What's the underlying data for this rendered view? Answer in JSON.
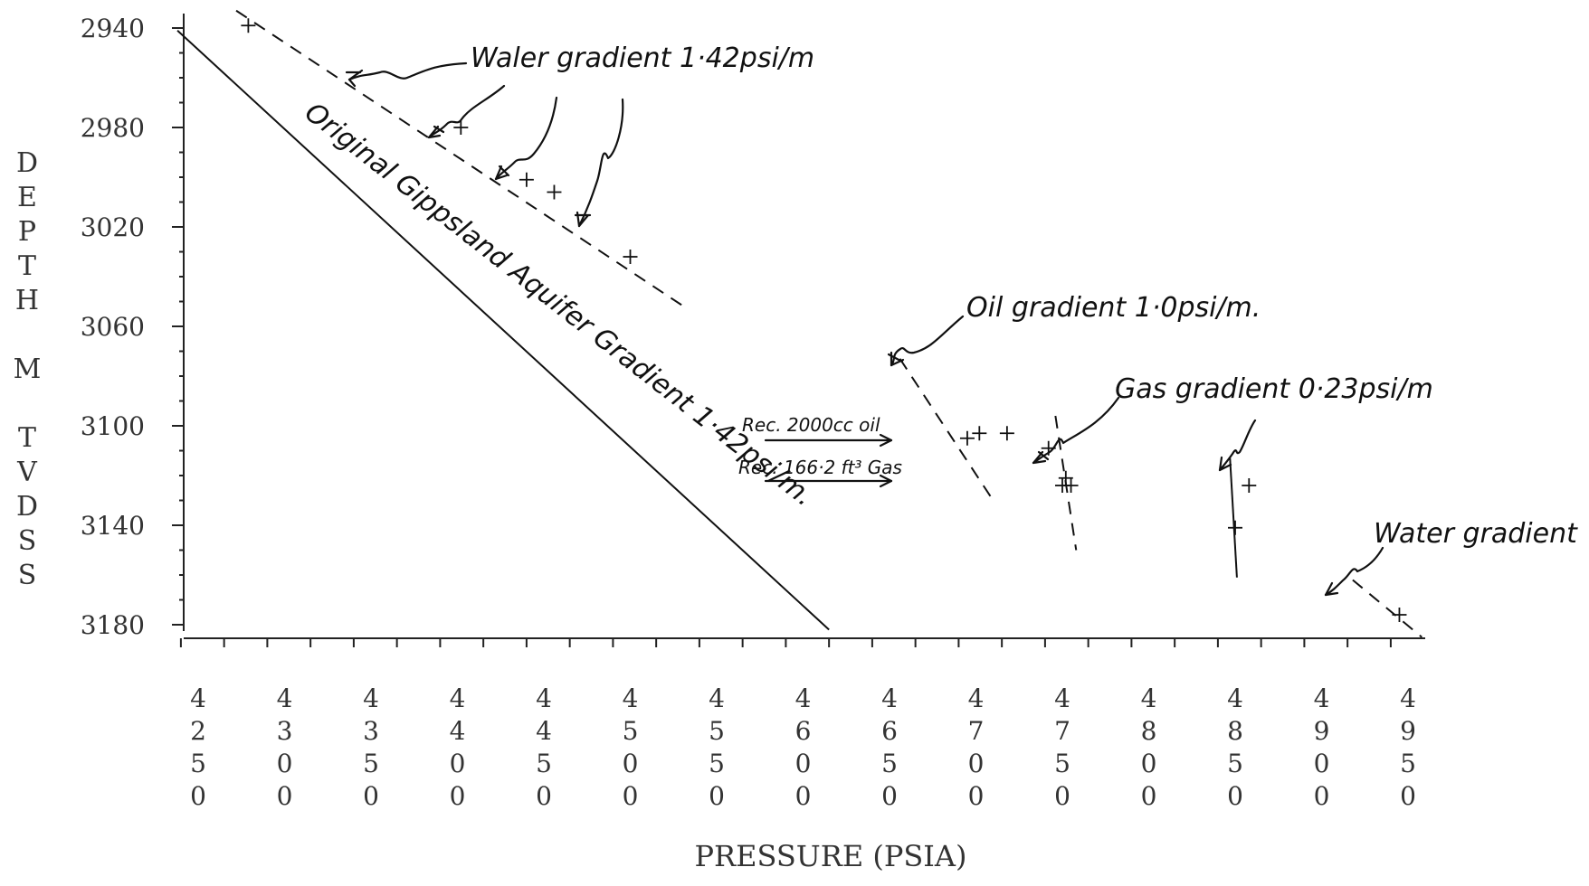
{
  "chart_data": {
    "type": "scatter",
    "title": "",
    "xlabel": "PRESSURE (PSIA)",
    "ylabel": "DEPTH M TVDSS",
    "xlim": [
      4230,
      4990
    ],
    "ylim": [
      3186,
      2936
    ],
    "x_ticks": [
      "4250",
      "4300",
      "4350",
      "4400",
      "4450",
      "4500",
      "4550",
      "4600",
      "4650",
      "4700",
      "4750",
      "4800",
      "4850",
      "4900",
      "4950"
    ],
    "y_ticks": [
      "2940",
      "2980",
      "3020",
      "3060",
      "3100",
      "3140",
      "3180"
    ],
    "points": [
      {
        "x": 4279,
        "y": 2939
      },
      {
        "x": 4402,
        "y": 2980
      },
      {
        "x": 4440,
        "y": 3001
      },
      {
        "x": 4456,
        "y": 3006
      },
      {
        "x": 4500,
        "y": 3032
      },
      {
        "x": 4695,
        "y": 3105
      },
      {
        "x": 4702,
        "y": 3103
      },
      {
        "x": 4718,
        "y": 3103
      },
      {
        "x": 4742,
        "y": 3109
      },
      {
        "x": 4750,
        "y": 3124
      },
      {
        "x": 4755,
        "y": 3124
      },
      {
        "x": 4752,
        "y": 3121
      },
      {
        "x": 4858,
        "y": 3124
      },
      {
        "x": 4850,
        "y": 3141
      },
      {
        "x": 4945,
        "y": 3176
      }
    ],
    "series": [
      {
        "name": "Original Gippsland Aquifer Gradient 1·42psi/m",
        "style": "solid",
        "x": [
          4238,
          4615
        ],
        "y": [
          2941,
          3182
        ]
      },
      {
        "name": "Water gradient 1·42psi/m",
        "style": "dashed",
        "x": [
          4272,
          4531
        ],
        "y": [
          2933,
          3052
        ]
      },
      {
        "name": "Oil gradient 1·0psi/m",
        "style": "dashed",
        "x": [
          4656,
          4709
        ],
        "y": [
          3073,
          3129
        ]
      },
      {
        "name": "Gas gradient 0·23psi/m",
        "style": "dashed",
        "x": [
          4746,
          4758
        ],
        "y": [
          3096,
          3150
        ]
      },
      {
        "name": "Gas gradient 0·23psi/m",
        "style": "solid",
        "x": [
          4847,
          4851
        ],
        "y": [
          3113,
          3161
        ]
      },
      {
        "name": "Water gradient",
        "style": "dashed",
        "x": [
          4918,
          4958
        ],
        "y": [
          3162,
          3185
        ]
      }
    ],
    "annotations": [
      "Waler gradient 1·42psi/m",
      "Original Gippsland Aquifer Gradient 1·42psi/m.",
      "Oil gradient 1·0psi/m.",
      "Gas gradient 0·23psi/m",
      "Water gradient",
      "Rec. 2000cc oil",
      "Rec. 166·2 ft³ Gas"
    ],
    "grid": false,
    "legend": "none"
  }
}
